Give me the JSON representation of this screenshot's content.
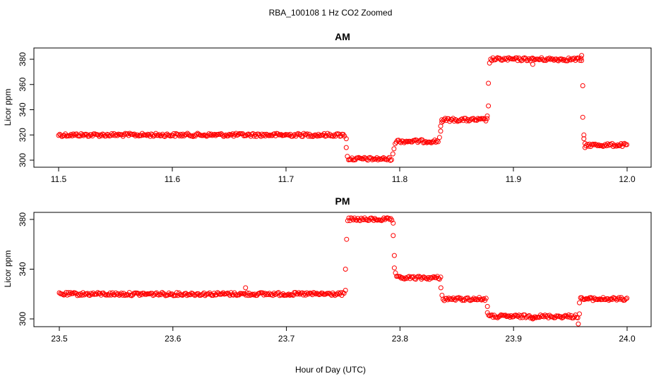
{
  "figure": {
    "title": "RBA_100108  1 Hz CO2 Zoomed",
    "xlabel": "Hour of Day (UTC)",
    "marker_color": "#ff0000"
  },
  "chart_data": [
    {
      "type": "scatter",
      "title": "AM",
      "xlabel": "",
      "ylabel": "Licor ppm",
      "xlim": [
        11.5,
        12.0
      ],
      "ylim": [
        300,
        385
      ],
      "xticks": [
        "11.5",
        "11.6",
        "11.7",
        "11.8",
        "11.9",
        "12.0"
      ],
      "yticks": [
        "300",
        "320",
        "340",
        "360",
        "380"
      ],
      "grid": false,
      "marker": "open-circle",
      "color": "#ff0000",
      "segments": [
        {
          "x_start": 11.5,
          "x_end": 11.752,
          "y": 320
        },
        {
          "x_start": 11.755,
          "x_end": 11.793,
          "y": 301
        },
        {
          "x_start": 11.797,
          "x_end": 11.834,
          "y": 315
        },
        {
          "x_start": 11.837,
          "x_end": 11.877,
          "y": 332
        },
        {
          "x_start": 11.88,
          "x_end": 11.96,
          "y": 380
        },
        {
          "x_start": 11.963,
          "x_end": 12.0,
          "y": 312
        }
      ],
      "transition_points": [
        {
          "x": 11.753,
          "y": 317
        },
        {
          "x": 11.753,
          "y": 310
        },
        {
          "x": 11.754,
          "y": 303
        },
        {
          "x": 11.794,
          "y": 305
        },
        {
          "x": 11.795,
          "y": 309
        },
        {
          "x": 11.796,
          "y": 313
        },
        {
          "x": 11.835,
          "y": 318
        },
        {
          "x": 11.836,
          "y": 323
        },
        {
          "x": 11.836,
          "y": 327
        },
        {
          "x": 11.837,
          "y": 330
        },
        {
          "x": 11.877,
          "y": 335
        },
        {
          "x": 11.878,
          "y": 343
        },
        {
          "x": 11.878,
          "y": 361
        },
        {
          "x": 11.879,
          "y": 377
        },
        {
          "x": 11.917,
          "y": 376
        },
        {
          "x": 11.96,
          "y": 383
        },
        {
          "x": 11.96,
          "y": 379
        },
        {
          "x": 11.961,
          "y": 359
        },
        {
          "x": 11.961,
          "y": 334
        },
        {
          "x": 11.962,
          "y": 320
        },
        {
          "x": 11.962,
          "y": 317
        },
        {
          "x": 11.963,
          "y": 310
        }
      ]
    },
    {
      "type": "scatter",
      "title": "PM",
      "xlabel": "",
      "ylabel": "Licor ppm",
      "xlim": [
        23.5,
        24.0
      ],
      "ylim": [
        293,
        385
      ],
      "xticks": [
        "23.5",
        "23.6",
        "23.7",
        "23.8",
        "23.9",
        "24.0"
      ],
      "yticks": [
        "300",
        "340",
        "380"
      ],
      "grid": false,
      "marker": "open-circle",
      "color": "#ff0000",
      "segments": [
        {
          "x_start": 23.5,
          "x_end": 23.751,
          "y": 320
        },
        {
          "x_start": 23.755,
          "x_end": 23.793,
          "y": 380
        },
        {
          "x_start": 23.797,
          "x_end": 23.836,
          "y": 333
        },
        {
          "x_start": 23.838,
          "x_end": 23.876,
          "y": 316
        },
        {
          "x_start": 23.879,
          "x_end": 23.957,
          "y": 302
        },
        {
          "x_start": 23.96,
          "x_end": 24.0,
          "y": 316
        }
      ],
      "transition_points": [
        {
          "x": 23.752,
          "y": 323
        },
        {
          "x": 23.752,
          "y": 340
        },
        {
          "x": 23.753,
          "y": 364
        },
        {
          "x": 23.754,
          "y": 379
        },
        {
          "x": 23.664,
          "y": 325
        },
        {
          "x": 23.794,
          "y": 377
        },
        {
          "x": 23.794,
          "y": 367
        },
        {
          "x": 23.795,
          "y": 351
        },
        {
          "x": 23.795,
          "y": 341
        },
        {
          "x": 23.796,
          "y": 337
        },
        {
          "x": 23.836,
          "y": 325
        },
        {
          "x": 23.837,
          "y": 319
        },
        {
          "x": 23.877,
          "y": 310
        },
        {
          "x": 23.877,
          "y": 305
        },
        {
          "x": 23.878,
          "y": 303
        },
        {
          "x": 23.917,
          "y": 300
        },
        {
          "x": 23.957,
          "y": 296
        },
        {
          "x": 23.958,
          "y": 304
        },
        {
          "x": 23.958,
          "y": 313
        },
        {
          "x": 23.959,
          "y": 317
        }
      ]
    }
  ]
}
